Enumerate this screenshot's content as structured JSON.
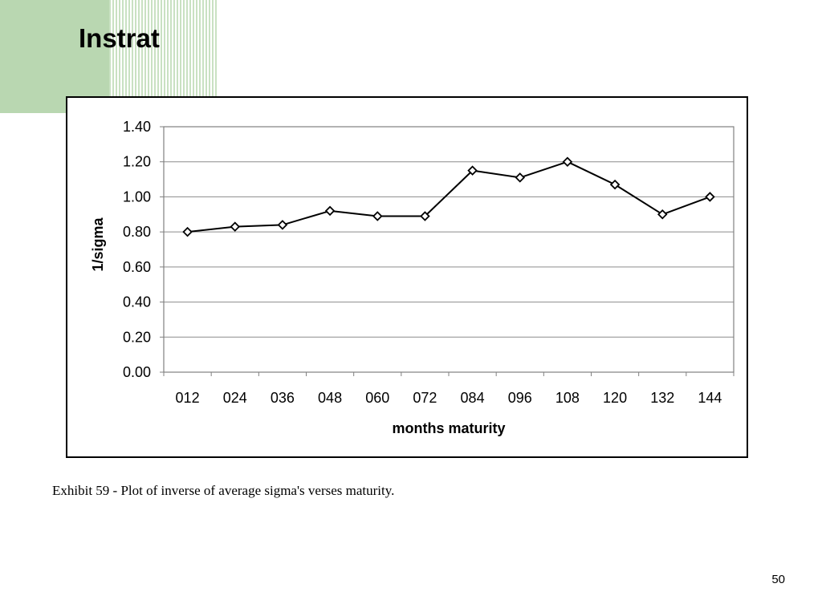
{
  "slide": {
    "title": "Instrat",
    "caption": "Exhibit 59 - Plot of inverse of average sigma's verses maturity.",
    "page_number": "50"
  },
  "chart_data": {
    "type": "line",
    "title": "",
    "xlabel": "months maturity",
    "ylabel": "1/sigma",
    "categories": [
      "012",
      "024",
      "036",
      "048",
      "060",
      "072",
      "084",
      "096",
      "108",
      "120",
      "132",
      "144"
    ],
    "series": [
      {
        "values": [
          0.8,
          0.83,
          0.84,
          0.92,
          0.89,
          0.89,
          1.15,
          1.11,
          1.2,
          1.07,
          0.9,
          1.0
        ],
        "color": "#000000",
        "marker": "diamond"
      }
    ],
    "y_ticks": [
      "0.00",
      "0.20",
      "0.40",
      "0.60",
      "0.80",
      "1.00",
      "1.20",
      "1.40"
    ],
    "ylim": [
      0,
      1.4
    ],
    "grid": "horizontal",
    "legend": "none"
  }
}
